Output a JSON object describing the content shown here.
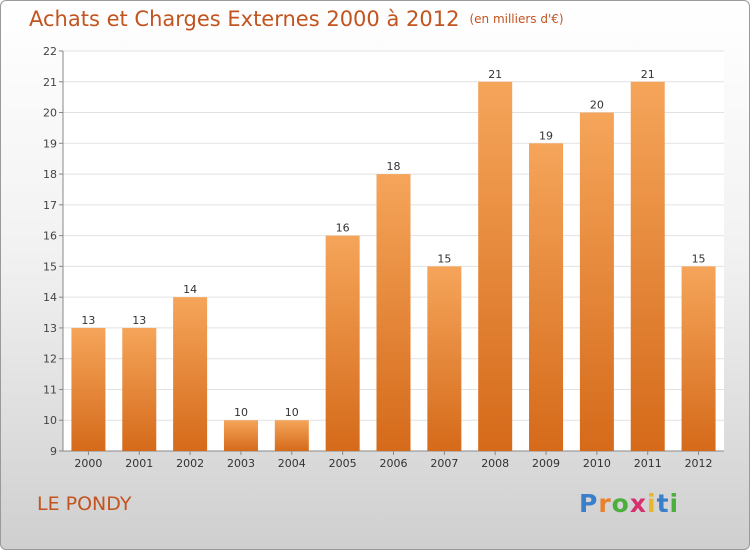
{
  "title": "Achats et Charges Externes 2000 à 2012",
  "subtitle": "(en milliers d'€)",
  "location": "LE PONDY",
  "logo": {
    "letters": [
      "P",
      "r",
      "o",
      "x",
      "i",
      "t",
      "i"
    ],
    "colors": [
      "#3a7fc9",
      "#e8812b",
      "#4caf3c",
      "#d6306f",
      "#e8b62b",
      "#3a7fc9",
      "#4caf3c"
    ]
  },
  "colors": {
    "title": "#c2541f",
    "bar_top": "#f5a55a",
    "bar_bottom": "#d56a1a"
  },
  "chart_data": {
    "type": "bar",
    "categories": [
      "2000",
      "2001",
      "2002",
      "2003",
      "2004",
      "2005",
      "2006",
      "2007",
      "2008",
      "2009",
      "2010",
      "2011",
      "2012"
    ],
    "values": [
      13,
      13,
      14,
      10,
      10,
      16,
      18,
      15,
      21,
      19,
      20,
      21,
      15
    ],
    "data_labels": [
      "13",
      "13",
      "14",
      "10",
      "10",
      "16",
      "18",
      "15",
      "21",
      "19",
      "20",
      "21",
      "15"
    ],
    "yticks": [
      "9",
      "10",
      "11",
      "12",
      "13",
      "14",
      "15",
      "16",
      "17",
      "18",
      "19",
      "20",
      "21",
      "22"
    ],
    "ylim": [
      9,
      22
    ],
    "grid": true,
    "xlabel": "",
    "ylabel": ""
  }
}
